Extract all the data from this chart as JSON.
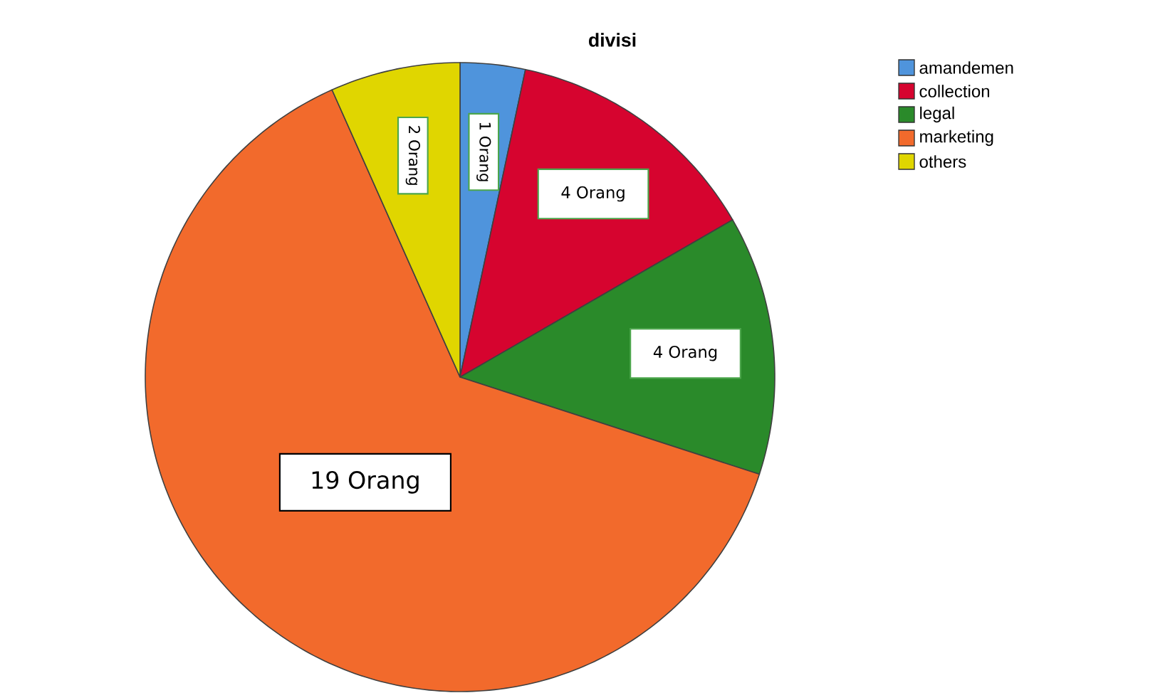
{
  "chart_data": {
    "type": "pie",
    "title": "divisi",
    "categories": [
      "amandemen",
      "collection",
      "legal",
      "marketing",
      "others"
    ],
    "values": [
      1,
      4,
      4,
      19,
      2
    ],
    "colors": [
      "#4f94dc",
      "#d6042f",
      "#2a8a2a",
      "#f26a2c",
      "#e0d600"
    ],
    "value_labels": [
      "1 Orang",
      "4 Orang",
      "4 Orang",
      "19 Orang",
      "2 Orang"
    ],
    "legend": "top right"
  }
}
